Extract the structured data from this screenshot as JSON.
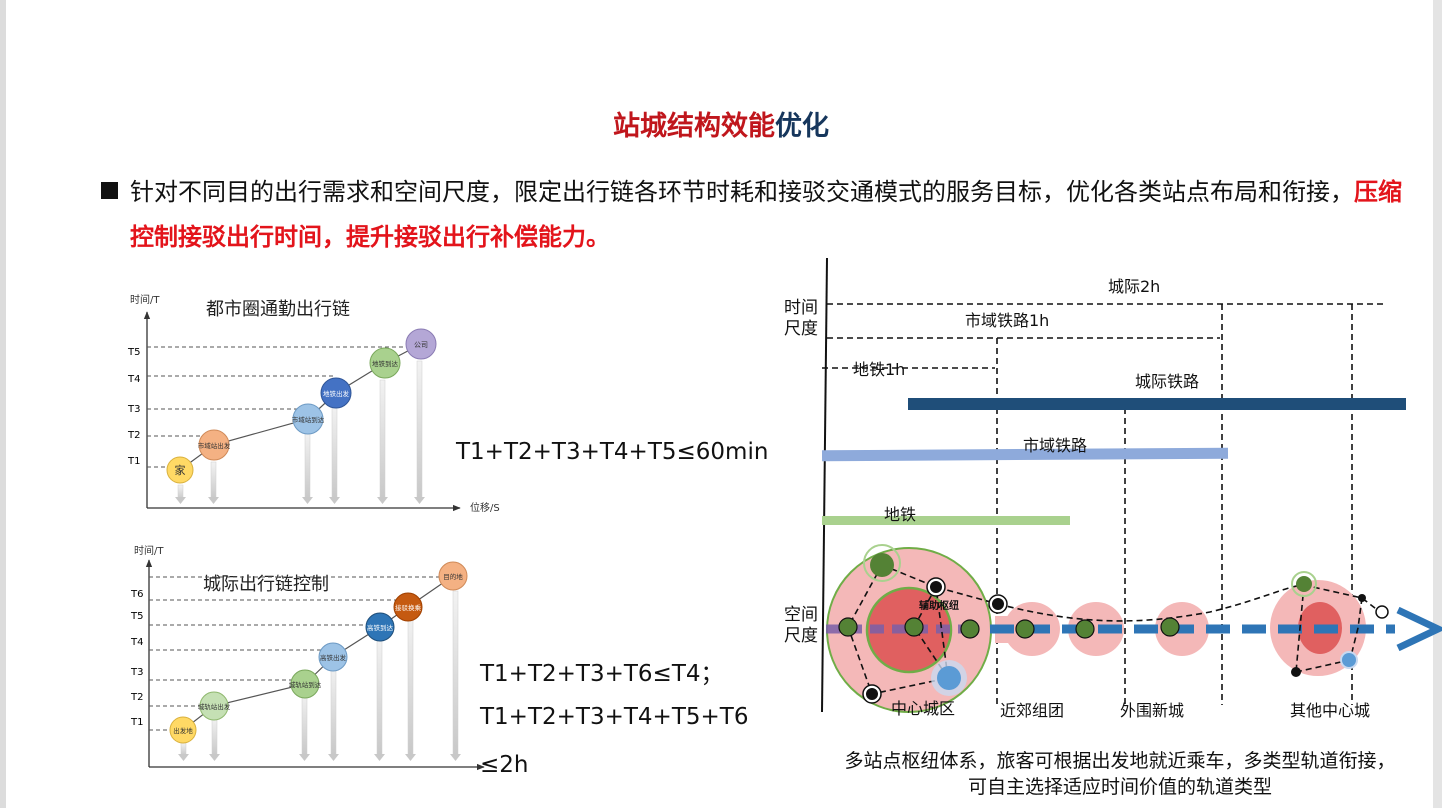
{
  "title": {
    "part_red": "站城结构效能",
    "part_blue": "优化"
  },
  "bullet": {
    "text_plain": "针对不同目的出行需求和空间尺度，限定出行链各环节时耗和接驳交通模式的服务目标，优化各类站点布局和衔接，",
    "text_highlight": "压缩控制接驳出行时间，提升接驳出行补偿能力。"
  },
  "colors": {
    "title_red": "#c0161c",
    "title_blue": "#16365c",
    "highlight": "#e3141b",
    "intercity": "#1f4e79",
    "metro_region": "#8eaadb",
    "subway": "#a9d18e"
  },
  "chart1": {
    "title": "都市圈通勤出行链",
    "y_axis_label": "时间/T",
    "x_axis_label": "位移/S",
    "y_ticks": [
      "T1",
      "T2",
      "T3",
      "T4",
      "T5"
    ],
    "nodes": [
      "家",
      "市域站出发",
      "市域站到达",
      "地铁出发",
      "地铁到达",
      "公司"
    ],
    "equation": "T1+T2+T3+T4+T5≤60min"
  },
  "chart2": {
    "title": "城际出行链控制",
    "y_axis_label": "时间/T",
    "y_ticks": [
      "T1",
      "T2",
      "T3",
      "T4",
      "T5",
      "T6"
    ],
    "nodes": [
      "出发地",
      "城轨站出发",
      "城轨站到达",
      "高铁出发",
      "高铁到达",
      "接驳换乘",
      "目的地"
    ],
    "equation_line1": "T1+T2+T3+T6≤T4；",
    "equation_line2": "T1+T2+T3+T4+T5+T6",
    "equation_line3": "≤2h"
  },
  "diagram": {
    "axis_time": [
      "时间",
      "尺度"
    ],
    "axis_space": [
      "空间",
      "尺度"
    ],
    "time_limits": [
      "城际2h",
      "市域铁路1h",
      "地铁1h"
    ],
    "rail_types": [
      "城际铁路",
      "市域铁路",
      "地铁"
    ],
    "hub_label": "辅助枢纽",
    "zones": [
      "中心城区",
      "近郊组团",
      "外围新城",
      "其他中心城"
    ],
    "caption_line1": "多站点枢纽体系，旅客可根据出发地就近乘车，多类型轨道衔接，",
    "caption_line2": "可自主选择适应时间价值的轨道类型"
  }
}
